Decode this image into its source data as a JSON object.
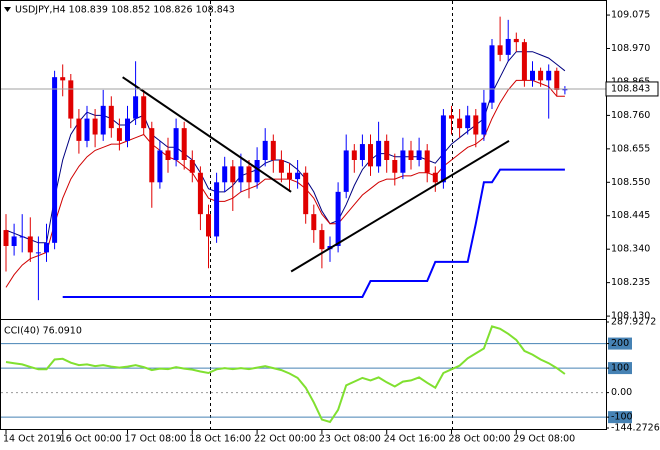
{
  "chart_data": [
    {
      "type": "candlestick",
      "title": "USDJPY,H4  108.839 108.852 108.826 108.843",
      "categories": [
        "14 Oct 2019",
        null,
        null,
        null,
        null,
        null,
        null,
        "16 Oct 00:00",
        null,
        null,
        null,
        null,
        null,
        null,
        null,
        "17 Oct 08:00",
        null,
        null,
        null,
        null,
        null,
        null,
        null,
        "18 Oct 16:00",
        null,
        null,
        null,
        null,
        null,
        null,
        null,
        "22 Oct 00:00",
        null,
        null,
        null,
        null,
        null,
        null,
        null,
        "23 Oct 08:00",
        null,
        null,
        null,
        null,
        null,
        null,
        null,
        "24 Oct 16:00",
        null,
        null,
        null,
        null,
        null,
        null,
        null,
        "28 Oct 00:00",
        null,
        null,
        null,
        null,
        null,
        null,
        null,
        "29 Oct 08:00",
        null,
        null,
        null,
        null,
        null,
        null
      ],
      "open": [
        108.4,
        108.35,
        108.38,
        108.38,
        108.33,
        108.33,
        108.36,
        108.88,
        108.87,
        108.75,
        108.68,
        108.75,
        108.7,
        108.79,
        108.72,
        108.68,
        108.75,
        108.82,
        108.72,
        108.55,
        108.65,
        108.62,
        108.72,
        108.62,
        108.58,
        108.45,
        108.38,
        108.55,
        108.6,
        108.55,
        108.6,
        108.55,
        108.62,
        108.68,
        108.62,
        108.58,
        108.56,
        108.58,
        108.45,
        108.4,
        108.34,
        108.35,
        108.52,
        108.65,
        108.62,
        108.67,
        108.6,
        108.68,
        108.62,
        108.58,
        108.65,
        108.62,
        108.65,
        108.58,
        108.55,
        108.76,
        108.75,
        108.72,
        108.76,
        108.7,
        108.8,
        108.98,
        108.95,
        109.0,
        108.99,
        108.87,
        108.9,
        108.87,
        108.9,
        108.839
      ],
      "high": [
        108.45,
        108.42,
        108.45,
        108.44,
        108.38,
        108.42,
        108.9,
        108.92,
        108.89,
        108.78,
        108.79,
        108.78,
        108.84,
        108.82,
        108.75,
        108.79,
        108.93,
        108.84,
        108.74,
        108.68,
        108.69,
        108.75,
        108.74,
        108.65,
        108.6,
        108.48,
        108.58,
        108.63,
        108.62,
        108.64,
        108.62,
        108.66,
        108.72,
        108.7,
        108.65,
        108.61,
        108.62,
        108.6,
        108.48,
        108.42,
        108.38,
        108.55,
        108.7,
        108.67,
        108.7,
        108.7,
        108.74,
        108.7,
        108.64,
        108.69,
        108.68,
        108.69,
        108.67,
        108.6,
        108.78,
        108.79,
        108.78,
        108.79,
        108.78,
        108.84,
        109.0,
        109.07,
        109.06,
        109.02,
        109.0,
        108.93,
        108.91,
        108.92,
        108.91,
        108.852
      ],
      "low": [
        108.27,
        108.32,
        108.33,
        108.3,
        108.18,
        108.3,
        108.34,
        108.82,
        108.72,
        108.64,
        108.66,
        108.66,
        108.68,
        108.69,
        108.65,
        108.66,
        108.73,
        108.7,
        108.47,
        108.53,
        108.58,
        108.6,
        108.59,
        108.55,
        108.4,
        108.28,
        108.36,
        108.52,
        108.46,
        108.52,
        108.5,
        108.53,
        108.6,
        108.58,
        108.55,
        108.52,
        108.53,
        108.42,
        108.36,
        108.28,
        108.3,
        108.33,
        108.5,
        108.58,
        108.6,
        108.57,
        108.58,
        108.58,
        108.54,
        108.56,
        108.59,
        108.6,
        108.55,
        108.52,
        108.53,
        108.7,
        108.69,
        108.7,
        108.66,
        108.68,
        108.78,
        108.93,
        108.93,
        108.96,
        108.85,
        108.85,
        108.85,
        108.75,
        108.82,
        108.826
      ],
      "close": [
        108.35,
        108.38,
        108.38,
        108.33,
        108.33,
        108.36,
        108.88,
        108.87,
        108.75,
        108.68,
        108.75,
        108.7,
        108.79,
        108.72,
        108.68,
        108.75,
        108.82,
        108.72,
        108.55,
        108.65,
        108.62,
        108.72,
        108.62,
        108.58,
        108.45,
        108.38,
        108.55,
        108.6,
        108.55,
        108.6,
        108.55,
        108.62,
        108.68,
        108.62,
        108.58,
        108.56,
        108.58,
        108.45,
        108.4,
        108.34,
        108.35,
        108.52,
        108.65,
        108.62,
        108.67,
        108.6,
        108.68,
        108.62,
        108.58,
        108.65,
        108.62,
        108.65,
        108.58,
        108.55,
        108.76,
        108.75,
        108.72,
        108.76,
        108.7,
        108.8,
        108.98,
        108.95,
        109.0,
        108.99,
        108.87,
        108.9,
        108.87,
        108.9,
        108.84,
        108.843
      ],
      "up_color": "#0000ff",
      "down_color": "#e00000",
      "series": [
        {
          "color": "#000080",
          "width": 1,
          "values": [
            108.4,
            108.39,
            108.38,
            108.37,
            108.36,
            108.36,
            108.5,
            108.62,
            108.7,
            108.74,
            108.77,
            108.76,
            108.76,
            108.75,
            108.73,
            108.73,
            108.75,
            108.76,
            108.7,
            108.68,
            108.66,
            108.66,
            108.64,
            108.62,
            108.58,
            108.53,
            108.52,
            108.52,
            108.54,
            108.57,
            108.58,
            108.59,
            108.61,
            108.62,
            108.62,
            108.61,
            108.59,
            108.56,
            108.52,
            108.46,
            108.42,
            108.43,
            108.48,
            108.54,
            108.59,
            108.62,
            108.64,
            108.64,
            108.63,
            108.63,
            108.63,
            108.63,
            108.62,
            108.61,
            108.64,
            108.67,
            108.69,
            108.71,
            108.73,
            108.75,
            108.83,
            108.88,
            108.93,
            108.96,
            108.96,
            108.96,
            108.95,
            108.94,
            108.92,
            108.9
          ]
        },
        {
          "color": "#d00000",
          "width": 1,
          "values": [
            108.22,
            108.26,
            108.29,
            108.31,
            108.32,
            108.33,
            108.42,
            108.5,
            108.56,
            108.6,
            108.63,
            108.65,
            108.66,
            108.67,
            108.67,
            108.68,
            108.69,
            108.7,
            108.67,
            108.65,
            108.63,
            108.62,
            108.6,
            108.58,
            108.54,
            108.5,
            108.49,
            108.49,
            108.5,
            108.52,
            108.53,
            108.54,
            108.56,
            108.56,
            108.56,
            108.56,
            108.55,
            108.53,
            108.5,
            108.45,
            108.42,
            108.42,
            108.45,
            108.48,
            108.51,
            108.53,
            108.55,
            108.56,
            108.56,
            108.57,
            108.57,
            108.58,
            108.58,
            108.57,
            108.6,
            108.62,
            108.64,
            108.66,
            108.67,
            108.69,
            108.75,
            108.8,
            108.84,
            108.87,
            108.87,
            108.87,
            108.86,
            108.85,
            108.82,
            108.82
          ]
        },
        {
          "color": "#0000ff",
          "width": 2,
          "values": [
            null,
            null,
            null,
            null,
            null,
            null,
            null,
            108.19,
            108.19,
            108.19,
            108.19,
            108.19,
            108.19,
            108.19,
            108.19,
            108.19,
            108.19,
            108.19,
            108.19,
            108.19,
            108.19,
            108.19,
            108.19,
            108.19,
            108.19,
            108.19,
            108.19,
            108.19,
            108.19,
            108.19,
            108.19,
            108.19,
            108.19,
            108.19,
            108.19,
            108.19,
            108.19,
            108.19,
            108.19,
            108.19,
            108.19,
            108.19,
            108.19,
            108.19,
            108.19,
            108.24,
            108.24,
            108.24,
            108.24,
            108.24,
            108.24,
            108.24,
            108.24,
            108.3,
            108.3,
            108.3,
            108.3,
            108.3,
            108.42,
            108.55,
            108.55,
            108.59,
            108.59,
            108.59,
            108.59,
            108.59,
            108.59,
            108.59,
            108.59,
            108.59
          ]
        }
      ],
      "trendlines": [
        {
          "x": [
            14.4,
            35.2
          ],
          "y": [
            108.88,
            108.52
          ]
        },
        {
          "x": [
            35.2,
            62.1
          ],
          "y": [
            108.27,
            108.68
          ]
        }
      ],
      "ylim": [
        108.124,
        109.116
      ],
      "yticks": [
        109.075,
        {
          "value": 108.97,
          "label": "108.970"
        },
        108.865,
        {
          "value": 108.76,
          "label": "108.760"
        },
        108.655,
        {
          "value": 108.55,
          "label": "108.550"
        },
        108.445,
        {
          "value": 108.34,
          "label": "108.340"
        },
        108.235,
        {
          "value": 108.13,
          "label": "108.130"
        }
      ]
    },
    {
      "type": "line",
      "title": "CCI(40) 76.0910",
      "color": "#80e030",
      "values": [
        125,
        120,
        115,
        105,
        95,
        95,
        135,
        138,
        122,
        112,
        115,
        108,
        112,
        106,
        102,
        106,
        112,
        104,
        92,
        98,
        96,
        104,
        98,
        94,
        86,
        80,
        95,
        100,
        96,
        100,
        96,
        102,
        108,
        100,
        92,
        78,
        60,
        20,
        -40,
        -110,
        -120,
        -70,
        30,
        45,
        60,
        50,
        62,
        42,
        25,
        45,
        50,
        62,
        40,
        20,
        80,
        95,
        110,
        140,
        160,
        180,
        270,
        260,
        240,
        215,
        170,
        155,
        135,
        120,
        100,
        76.091
      ],
      "ylim": [
        -144.2726,
        287.9272
      ],
      "yticks": [
        287.9272,
        200,
        100,
        {
          "value": 0,
          "label": "0.00"
        },
        -100,
        -144.2726
      ],
      "levels": [
        200,
        100,
        -100
      ]
    }
  ]
}
